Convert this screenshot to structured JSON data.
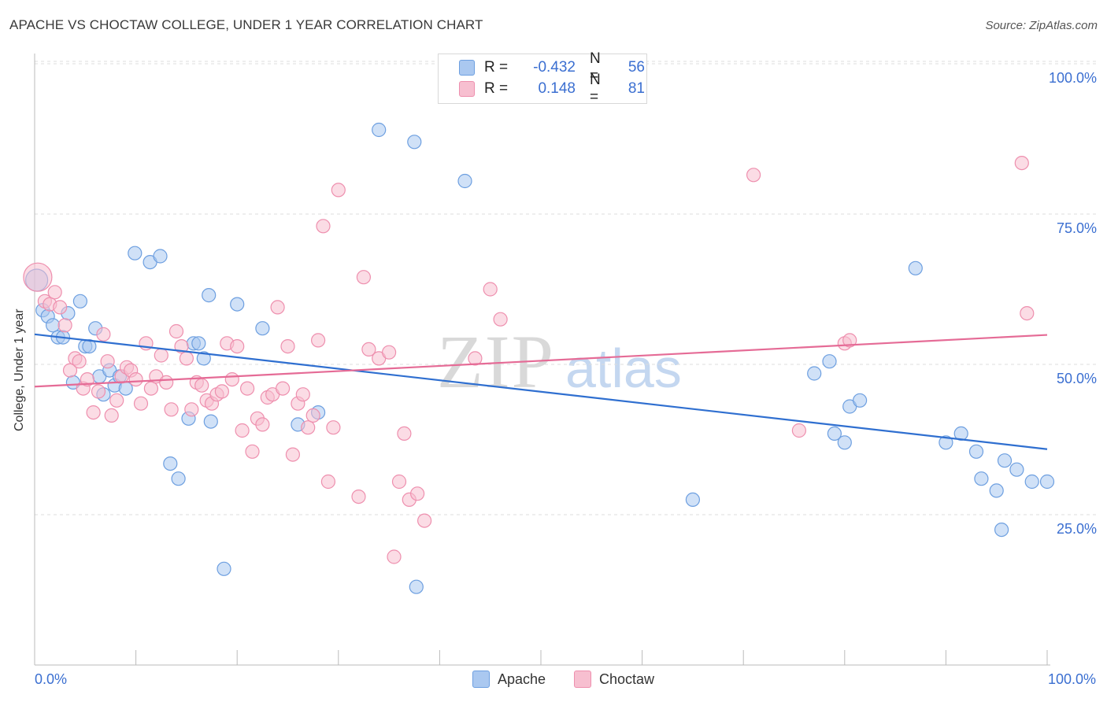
{
  "header": {
    "title": "APACHE VS CHOCTAW COLLEGE, UNDER 1 YEAR CORRELATION CHART",
    "source": "Source: ZipAtlas.com"
  },
  "watermark": {
    "zip": "ZIP",
    "atlas": "atlas"
  },
  "legend": {
    "apache": {
      "r_label": "R =",
      "r_value": "-0.432",
      "n_label": "N =",
      "n_value": "56"
    },
    "choctaw": {
      "r_label": "R =",
      "r_value": "0.148",
      "n_label": "N =",
      "n_value": "81"
    }
  },
  "bottom_legend": {
    "apache": "Apache",
    "choctaw": "Choctaw"
  },
  "colors": {
    "apache_fill": "#aac8f0",
    "apache_stroke": "#6d9fe0",
    "apache_line": "#2f6fd0",
    "choctaw_fill": "#f7bfd0",
    "choctaw_stroke": "#ee8fae",
    "choctaw_line": "#e56b96",
    "tick_text": "#3b6fd1",
    "grid": "#dddddd"
  },
  "chart_data": {
    "type": "scatter",
    "title": "APACHE VS CHOCTAW COLLEGE, UNDER 1 YEAR CORRELATION CHART",
    "xlabel": "",
    "ylabel": "College, Under 1 year",
    "xlim": [
      0,
      100
    ],
    "ylim": [
      0,
      103
    ],
    "x_tick_labels": [
      "0.0%",
      "100.0%"
    ],
    "y_ticks": [
      {
        "value": 25,
        "label": "25.0%"
      },
      {
        "value": 50,
        "label": "50.0%"
      },
      {
        "value": 75,
        "label": "75.0%"
      },
      {
        "value": 100,
        "label": "100.0%"
      }
    ],
    "grid": true,
    "series": [
      {
        "name": "Apache",
        "color": "#aac8f0",
        "trend": {
          "x": [
            0,
            100
          ],
          "y": [
            55.0,
            35.9
          ]
        },
        "points": [
          [
            0.2,
            64.0
          ],
          [
            0.8,
            59.0
          ],
          [
            1.3,
            58.0
          ],
          [
            1.8,
            56.5
          ],
          [
            2.3,
            54.5
          ],
          [
            2.8,
            54.5
          ],
          [
            3.3,
            58.5
          ],
          [
            3.8,
            47.0
          ],
          [
            4.5,
            60.5
          ],
          [
            5.0,
            53.0
          ],
          [
            5.4,
            53.0
          ],
          [
            6.0,
            56.0
          ],
          [
            6.4,
            48.0
          ],
          [
            6.8,
            45.0
          ],
          [
            7.4,
            49.0
          ],
          [
            7.9,
            46.5
          ],
          [
            8.4,
            48.0
          ],
          [
            9.0,
            46.0
          ],
          [
            9.9,
            68.5
          ],
          [
            11.4,
            67.0
          ],
          [
            12.4,
            68.0
          ],
          [
            13.4,
            33.5
          ],
          [
            14.2,
            31.0
          ],
          [
            15.2,
            41.0
          ],
          [
            15.7,
            53.5
          ],
          [
            16.2,
            53.5
          ],
          [
            16.7,
            51.0
          ],
          [
            17.2,
            61.5
          ],
          [
            17.4,
            40.5
          ],
          [
            18.7,
            16.0
          ],
          [
            20.0,
            60.0
          ],
          [
            22.5,
            56.0
          ],
          [
            26.0,
            40.0
          ],
          [
            28.0,
            42.0
          ],
          [
            34.0,
            89.0
          ],
          [
            37.5,
            87.0
          ],
          [
            37.7,
            13.0
          ],
          [
            42.5,
            80.5
          ],
          [
            65.0,
            27.5
          ],
          [
            77.0,
            48.5
          ],
          [
            78.5,
            50.5
          ],
          [
            79.0,
            38.5
          ],
          [
            80.0,
            37.0
          ],
          [
            80.5,
            43.0
          ],
          [
            81.5,
            44.0
          ],
          [
            87.0,
            66.0
          ],
          [
            90.0,
            37.0
          ],
          [
            91.5,
            38.5
          ],
          [
            93.0,
            35.5
          ],
          [
            93.5,
            31.0
          ],
          [
            95.0,
            29.0
          ],
          [
            95.5,
            22.5
          ],
          [
            95.8,
            34.0
          ],
          [
            97.0,
            32.5
          ],
          [
            98.5,
            30.5
          ],
          [
            100.0,
            30.5
          ]
        ]
      },
      {
        "name": "Choctaw",
        "color": "#f7bfd0",
        "trend": {
          "x": [
            0,
            100
          ],
          "y": [
            46.3,
            54.9
          ]
        },
        "points": [
          [
            0.3,
            64.5
          ],
          [
            1.0,
            60.5
          ],
          [
            1.5,
            60.0
          ],
          [
            2.0,
            62.0
          ],
          [
            2.5,
            59.5
          ],
          [
            3.0,
            56.5
          ],
          [
            3.5,
            49.0
          ],
          [
            4.0,
            51.0
          ],
          [
            4.4,
            50.5
          ],
          [
            4.8,
            46.0
          ],
          [
            5.2,
            47.5
          ],
          [
            5.8,
            42.0
          ],
          [
            6.3,
            45.5
          ],
          [
            6.8,
            55.0
          ],
          [
            7.2,
            50.5
          ],
          [
            7.6,
            41.5
          ],
          [
            8.1,
            44.0
          ],
          [
            8.6,
            48.0
          ],
          [
            9.1,
            49.5
          ],
          [
            9.5,
            49.0
          ],
          [
            10.0,
            47.5
          ],
          [
            10.5,
            43.5
          ],
          [
            11.0,
            53.5
          ],
          [
            11.5,
            46.0
          ],
          [
            12.0,
            48.0
          ],
          [
            12.5,
            51.5
          ],
          [
            13.0,
            47.0
          ],
          [
            13.5,
            42.5
          ],
          [
            14.0,
            55.5
          ],
          [
            14.5,
            53.0
          ],
          [
            15.0,
            51.0
          ],
          [
            15.5,
            42.5
          ],
          [
            16.0,
            47.0
          ],
          [
            16.5,
            46.5
          ],
          [
            17.0,
            44.0
          ],
          [
            17.5,
            43.5
          ],
          [
            18.0,
            45.0
          ],
          [
            18.5,
            45.5
          ],
          [
            19.0,
            53.5
          ],
          [
            19.5,
            47.5
          ],
          [
            20.0,
            53.0
          ],
          [
            20.5,
            39.0
          ],
          [
            21.0,
            46.0
          ],
          [
            21.5,
            35.5
          ],
          [
            22.0,
            41.0
          ],
          [
            22.5,
            40.0
          ],
          [
            23.0,
            44.5
          ],
          [
            23.5,
            45.0
          ],
          [
            24.0,
            59.5
          ],
          [
            24.5,
            46.0
          ],
          [
            25.0,
            53.0
          ],
          [
            25.5,
            35.0
          ],
          [
            26.0,
            43.5
          ],
          [
            26.5,
            45.0
          ],
          [
            27.0,
            39.5
          ],
          [
            27.5,
            41.5
          ],
          [
            28.0,
            54.0
          ],
          [
            28.5,
            73.0
          ],
          [
            29.0,
            30.5
          ],
          [
            29.5,
            39.5
          ],
          [
            30.0,
            79.0
          ],
          [
            32.0,
            28.0
          ],
          [
            32.5,
            64.5
          ],
          [
            33.0,
            52.5
          ],
          [
            34.0,
            51.0
          ],
          [
            35.0,
            52.0
          ],
          [
            35.5,
            18.0
          ],
          [
            36.0,
            30.5
          ],
          [
            36.5,
            38.5
          ],
          [
            37.0,
            27.5
          ],
          [
            37.8,
            28.5
          ],
          [
            38.5,
            24.0
          ],
          [
            43.5,
            51.0
          ],
          [
            45.0,
            62.5
          ],
          [
            46.0,
            57.5
          ],
          [
            71.0,
            81.5
          ],
          [
            75.5,
            39.0
          ],
          [
            80.0,
            53.5
          ],
          [
            80.5,
            54.0
          ],
          [
            97.5,
            83.5
          ],
          [
            98.0,
            58.5
          ]
        ]
      }
    ]
  }
}
